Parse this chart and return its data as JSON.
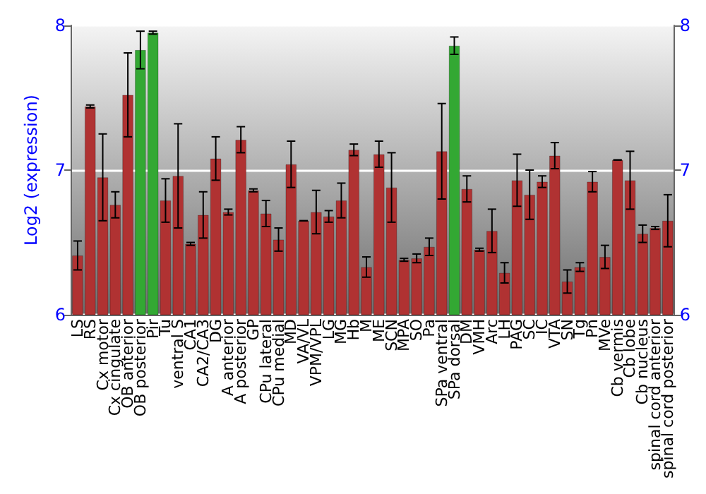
{
  "chart_data": {
    "type": "bar",
    "ylabel": "Log2 (expression)",
    "categories": [
      "LS",
      "RS",
      "Cx motor",
      "Cx cingulate",
      "OB anterior",
      "OB posterior",
      "Pir",
      "Tu",
      "ventral S",
      "CA1",
      "CA2/CA3",
      "DG",
      "A anterior",
      "A posterior",
      "GP",
      "CPu lateral",
      "CPu medial",
      "MD",
      "VA/VL",
      "VPM/VPL",
      "LG",
      "MG",
      "Hb",
      "M",
      "ME",
      "SCN",
      "MPA",
      "SO",
      "Pa",
      "SPa ventral",
      "SPa dorsal",
      "DM",
      "VMH",
      "Arc",
      "LH",
      "PAG",
      "SC",
      "IC",
      "VTA",
      "SN",
      "Tg",
      "Pn",
      "MVe",
      "Cb vermis",
      "Cb lobe",
      "Cb nucleus",
      "spinal cord anterior",
      "spinal cord posterior"
    ],
    "values": [
      6.41,
      7.44,
      6.95,
      6.76,
      7.52,
      7.83,
      7.95,
      6.79,
      6.96,
      6.49,
      6.69,
      7.08,
      6.71,
      7.21,
      6.86,
      6.7,
      6.52,
      7.04,
      6.65,
      6.71,
      6.68,
      6.79,
      7.14,
      6.33,
      7.11,
      6.88,
      6.38,
      6.39,
      6.47,
      7.13,
      7.86,
      6.87,
      6.45,
      6.58,
      6.29,
      6.93,
      6.83,
      6.92,
      7.1,
      6.23,
      6.33,
      6.92,
      6.4,
      7.07,
      6.93,
      6.56,
      6.6,
      6.65
    ],
    "errors": [
      0.1,
      0.01,
      0.3,
      0.09,
      0.29,
      0.13,
      0.01,
      0.15,
      0.36,
      0.01,
      0.16,
      0.15,
      0.02,
      0.09,
      0.01,
      0.09,
      0.08,
      0.16,
      0,
      0.15,
      0.04,
      0.12,
      0.04,
      0.07,
      0.09,
      0.24,
      0.01,
      0.03,
      0.06,
      0.33,
      0.06,
      0.09,
      0.01,
      0.15,
      0.07,
      0.18,
      0.17,
      0.04,
      0.09,
      0.08,
      0.03,
      0.07,
      0.08,
      0,
      0.2,
      0.06,
      0.01,
      0.18
    ],
    "colors": [
      "#b03232",
      "#b03232",
      "#b03232",
      "#b03232",
      "#b03232",
      "#33a833",
      "#33a833",
      "#b03232",
      "#b03232",
      "#b03232",
      "#b03232",
      "#b03232",
      "#b03232",
      "#b03232",
      "#b03232",
      "#b03232",
      "#b03232",
      "#b03232",
      "#b03232",
      "#b03232",
      "#b03232",
      "#b03232",
      "#b03232",
      "#b03232",
      "#b03232",
      "#b03232",
      "#b03232",
      "#b03232",
      "#b03232",
      "#b03232",
      "#33a833",
      "#b03232",
      "#b03232",
      "#b03232",
      "#b03232",
      "#b03232",
      "#b03232",
      "#b03232",
      "#b03232",
      "#b03232",
      "#b03232",
      "#b03232",
      "#b03232",
      "#b03232",
      "#b03232",
      "#b03232",
      "#b03232",
      "#b03232"
    ],
    "ylim": [
      6,
      8
    ],
    "yticks": [
      6,
      7,
      8
    ],
    "y2lim": [
      6,
      8
    ],
    "y2ticks": [
      6,
      7,
      8
    ],
    "grid": "y"
  }
}
